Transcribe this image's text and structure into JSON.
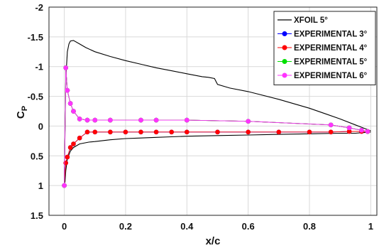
{
  "chart_data": {
    "type": "line",
    "xlabel": "x/c",
    "ylabel_main": "C",
    "ylabel_sub": "P",
    "xlim": [
      -0.05,
      1.02
    ],
    "ylim": [
      -2,
      1.5
    ],
    "y_inverted": true,
    "xticks": [
      0,
      0.2,
      0.4,
      0.6,
      0.8,
      1
    ],
    "xtick_labels": [
      "0",
      "0.2",
      "0.4",
      "0.6",
      "0.8",
      "1"
    ],
    "yticks": [
      -2,
      -1.5,
      -1,
      -0.5,
      0,
      0.5,
      1,
      1.5
    ],
    "ytick_labels": [
      "-2",
      "-1.5",
      "-1",
      "-0.5",
      "0",
      "0.5",
      "1",
      "1.5"
    ],
    "grid": true,
    "legend_position": "top-right",
    "series": [
      {
        "name": "XFOIL  5°",
        "style": "line",
        "color": "#000000",
        "x": [
          1.0,
          0.95,
          0.9,
          0.85,
          0.8,
          0.7,
          0.6,
          0.54,
          0.5,
          0.49,
          0.47,
          0.45,
          0.4,
          0.35,
          0.3,
          0.25,
          0.2,
          0.15,
          0.1,
          0.07,
          0.05,
          0.03,
          0.02,
          0.015,
          0.01,
          0.005,
          0.002,
          0.0,
          0.002,
          0.005,
          0.01,
          0.02,
          0.03,
          0.05,
          0.08,
          0.1,
          0.15,
          0.2,
          0.25,
          0.3,
          0.35,
          0.4,
          0.5,
          0.6,
          0.7,
          0.8,
          0.9,
          0.95,
          1.0
        ],
        "y": [
          0.08,
          -0.02,
          -0.12,
          -0.21,
          -0.3,
          -0.45,
          -0.58,
          -0.64,
          -0.7,
          -0.8,
          -0.82,
          -0.83,
          -0.88,
          -0.93,
          -0.98,
          -1.04,
          -1.1,
          -1.17,
          -1.25,
          -1.32,
          -1.38,
          -1.44,
          -1.43,
          -1.38,
          -1.25,
          -0.8,
          0.2,
          0.9,
          0.95,
          0.75,
          0.55,
          0.42,
          0.36,
          0.3,
          0.27,
          0.26,
          0.23,
          0.21,
          0.2,
          0.19,
          0.18,
          0.17,
          0.16,
          0.15,
          0.14,
          0.13,
          0.12,
          0.12,
          0.1
        ]
      },
      {
        "name": "EXPERIMENTAL 3°",
        "style": "line-marker",
        "color": "#0000ff",
        "x": [
          0.99,
          0.97,
          0.93,
          0.87,
          0.6,
          0.4,
          0.3,
          0.25,
          0.15,
          0.1,
          0.075,
          0.05,
          0.03,
          0.02,
          0.01,
          0.005,
          0.0,
          0.005,
          0.01,
          0.02,
          0.03,
          0.05,
          0.075,
          0.1,
          0.15,
          0.2,
          0.25,
          0.3,
          0.35,
          0.4,
          0.5,
          0.6,
          0.7,
          0.8,
          0.87,
          0.93,
          0.97,
          0.99
        ],
        "y": [
          0.09,
          0.07,
          0.03,
          -0.02,
          -0.08,
          -0.1,
          -0.1,
          -0.1,
          -0.1,
          -0.1,
          -0.1,
          -0.12,
          -0.25,
          -0.38,
          -0.6,
          -0.98,
          1.0,
          0.62,
          0.52,
          0.36,
          0.3,
          0.2,
          0.1,
          0.1,
          0.1,
          0.1,
          0.1,
          0.1,
          0.1,
          0.1,
          0.1,
          0.1,
          0.1,
          0.1,
          0.1,
          0.09,
          0.09,
          0.09
        ],
        "lower_indices": [
          16,
          17,
          18,
          19,
          20,
          21,
          22,
          23,
          24,
          25,
          26,
          27,
          28,
          29,
          30,
          31,
          32,
          33,
          34,
          35,
          36,
          37
        ]
      },
      {
        "name": "EXPERIMENTAL 4°",
        "style": "line-marker",
        "color": "#ff0000",
        "x": [
          0.99,
          0.97,
          0.93,
          0.87,
          0.6,
          0.4,
          0.3,
          0.25,
          0.15,
          0.1,
          0.075,
          0.05,
          0.03,
          0.02,
          0.01,
          0.005,
          0.0,
          0.005,
          0.01,
          0.02,
          0.03,
          0.05,
          0.075,
          0.1,
          0.15,
          0.2,
          0.25,
          0.3,
          0.35,
          0.4,
          0.5,
          0.6,
          0.7,
          0.8,
          0.87,
          0.93,
          0.97,
          0.99
        ],
        "y": [
          0.09,
          0.07,
          0.03,
          -0.02,
          -0.08,
          -0.1,
          -0.1,
          -0.1,
          -0.1,
          -0.1,
          -0.1,
          -0.12,
          -0.25,
          -0.38,
          -0.6,
          -0.98,
          1.0,
          0.62,
          0.52,
          0.36,
          0.3,
          0.2,
          0.1,
          0.1,
          0.1,
          0.1,
          0.1,
          0.1,
          0.1,
          0.1,
          0.1,
          0.1,
          0.1,
          0.1,
          0.1,
          0.09,
          0.09,
          0.09
        ]
      },
      {
        "name": "EXPERIMENTAL 5°",
        "style": "line-marker",
        "color": "#00e000",
        "x": [
          0.99,
          0.97,
          0.93,
          0.87,
          0.6,
          0.4,
          0.3,
          0.25,
          0.15,
          0.1,
          0.075,
          0.05,
          0.03,
          0.02,
          0.01,
          0.005,
          0.0
        ],
        "y": [
          0.09,
          0.07,
          0.03,
          -0.02,
          -0.08,
          -0.1,
          -0.1,
          -0.1,
          -0.1,
          -0.1,
          -0.1,
          -0.12,
          -0.25,
          -0.38,
          -0.6,
          -0.98,
          1.0
        ]
      },
      {
        "name": "EXPERIMENTAL 6°",
        "style": "line-marker",
        "color": "#ff33ff",
        "x": [
          0.99,
          0.97,
          0.93,
          0.87,
          0.6,
          0.4,
          0.3,
          0.25,
          0.15,
          0.1,
          0.075,
          0.05,
          0.03,
          0.02,
          0.01,
          0.005,
          0.0
        ],
        "y": [
          0.09,
          0.07,
          0.03,
          -0.02,
          -0.08,
          -0.1,
          -0.1,
          -0.1,
          -0.1,
          -0.1,
          -0.1,
          -0.12,
          -0.25,
          -0.38,
          -0.6,
          -0.98,
          1.0
        ]
      }
    ]
  }
}
